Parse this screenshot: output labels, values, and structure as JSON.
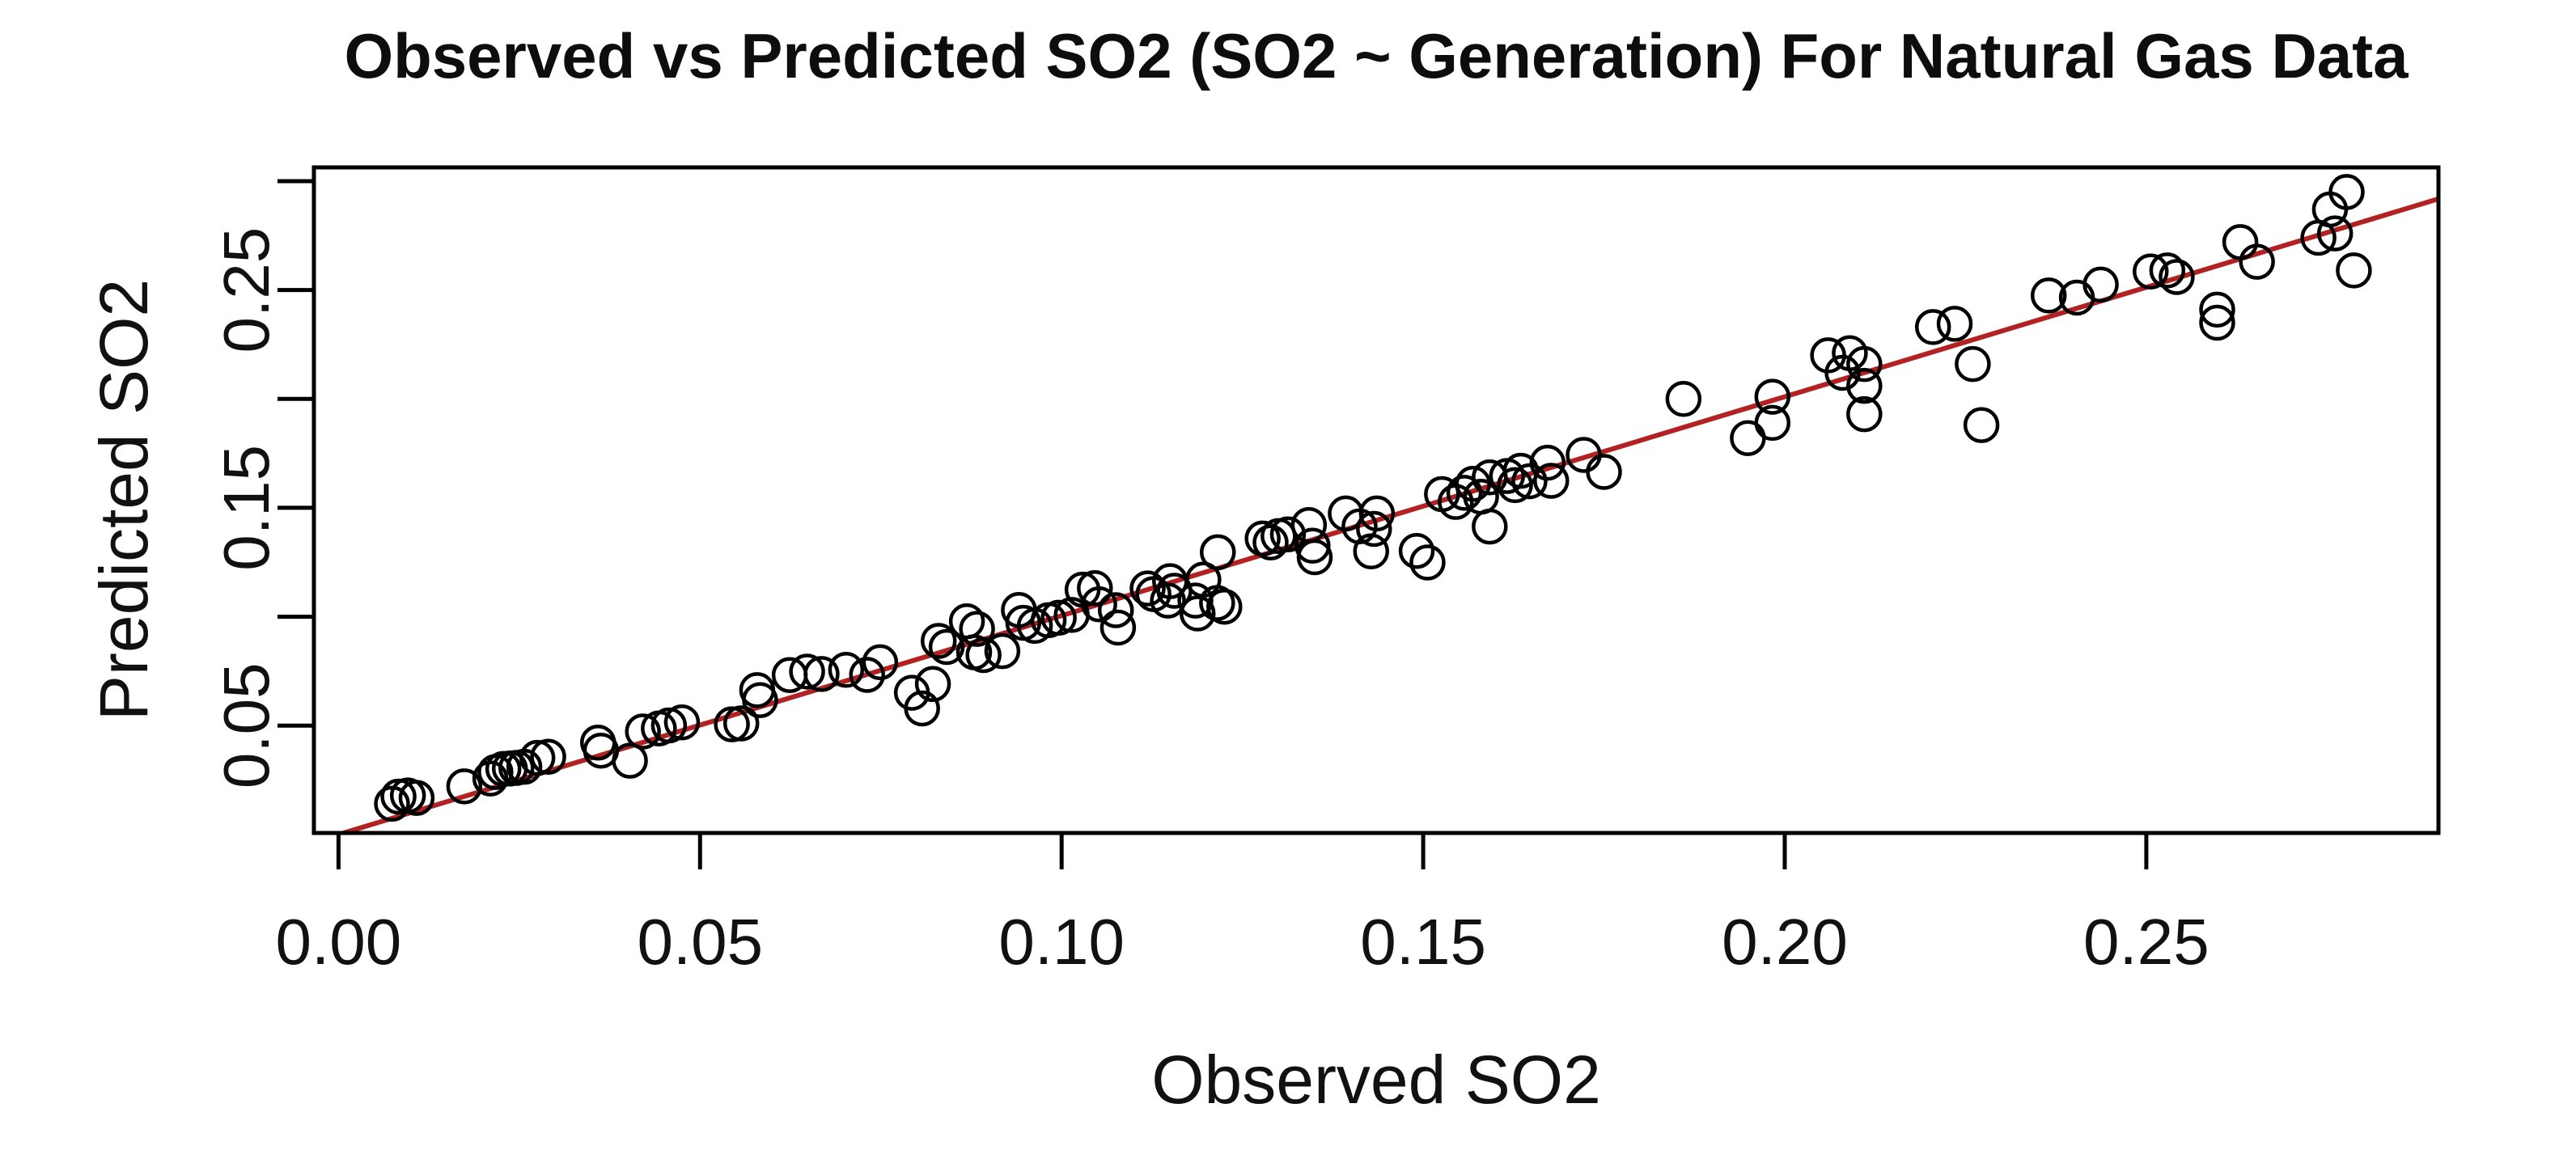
{
  "chart_data": {
    "type": "scatter",
    "title": "Observed vs Predicted SO2 (SO2 ~ Generation) For Natural Gas Data",
    "xlabel": "Observed SO2",
    "ylabel": "Predicted SO2",
    "xlim": [
      -0.0034,
      0.2904
    ],
    "ylim": [
      0.0007,
      0.3063
    ],
    "grid": false,
    "legend": null,
    "x_ticks": [
      {
        "value": 0.0,
        "label": "0.00"
      },
      {
        "value": 0.05,
        "label": "0.05"
      },
      {
        "value": 0.1,
        "label": "0.10"
      },
      {
        "value": 0.15,
        "label": "0.15"
      },
      {
        "value": 0.2,
        "label": "0.20"
      },
      {
        "value": 0.25,
        "label": "0.25"
      }
    ],
    "y_ticks": [
      {
        "value": 0.05,
        "label": "0.05"
      },
      {
        "value": 0.1,
        "label": ""
      },
      {
        "value": 0.15,
        "label": "0.15"
      },
      {
        "value": 0.2,
        "label": ""
      },
      {
        "value": 0.25,
        "label": "0.25"
      },
      {
        "value": 0.3,
        "label": ""
      }
    ],
    "reference_line": {
      "slope": 1.005,
      "intercept": 0.0,
      "color": "#b22222",
      "name": "identity-fit-line"
    },
    "point_style": {
      "shape": "open-circle",
      "stroke_color": "#000000",
      "radius_px": 20
    },
    "points": [
      [
        0.0074,
        0.0141
      ],
      [
        0.0083,
        0.0174
      ],
      [
        0.0096,
        0.0179
      ],
      [
        0.0108,
        0.0168
      ],
      [
        0.0174,
        0.0221
      ],
      [
        0.021,
        0.0257
      ],
      [
        0.0217,
        0.0287
      ],
      [
        0.0228,
        0.0301
      ],
      [
        0.0237,
        0.0303
      ],
      [
        0.0246,
        0.0306
      ],
      [
        0.0257,
        0.0311
      ],
      [
        0.0275,
        0.0352
      ],
      [
        0.029,
        0.0357
      ],
      [
        0.0359,
        0.0422
      ],
      [
        0.0363,
        0.0385
      ],
      [
        0.0403,
        0.0339
      ],
      [
        0.0421,
        0.0473
      ],
      [
        0.0443,
        0.0487
      ],
      [
        0.0457,
        0.0501
      ],
      [
        0.0475,
        0.0515
      ],
      [
        0.0544,
        0.0506
      ],
      [
        0.0557,
        0.051
      ],
      [
        0.0579,
        0.0663
      ],
      [
        0.0583,
        0.0617
      ],
      [
        0.0624,
        0.0732
      ],
      [
        0.0648,
        0.0748
      ],
      [
        0.0668,
        0.0737
      ],
      [
        0.0702,
        0.0756
      ],
      [
        0.0731,
        0.0733
      ],
      [
        0.0749,
        0.0791
      ],
      [
        0.0793,
        0.0651
      ],
      [
        0.0807,
        0.0579
      ],
      [
        0.0822,
        0.0691
      ],
      [
        0.083,
        0.0889
      ],
      [
        0.0841,
        0.0861
      ],
      [
        0.0869,
        0.0979
      ],
      [
        0.0879,
        0.0837
      ],
      [
        0.0883,
        0.0944
      ],
      [
        0.0892,
        0.0824
      ],
      [
        0.0918,
        0.0842
      ],
      [
        0.0941,
        0.1031
      ],
      [
        0.0947,
        0.0972
      ],
      [
        0.0963,
        0.0958
      ],
      [
        0.0982,
        0.0984
      ],
      [
        0.0996,
        0.0995
      ],
      [
        0.1014,
        0.1008
      ],
      [
        0.1029,
        0.1124
      ],
      [
        0.1046,
        0.1131
      ],
      [
        0.1052,
        0.1057
      ],
      [
        0.1075,
        0.103
      ],
      [
        0.1078,
        0.095
      ],
      [
        0.1119,
        0.113
      ],
      [
        0.1127,
        0.1104
      ],
      [
        0.1147,
        0.1074
      ],
      [
        0.115,
        0.1163
      ],
      [
        0.1156,
        0.1119
      ],
      [
        0.1185,
        0.1074
      ],
      [
        0.1188,
        0.1015
      ],
      [
        0.1196,
        0.117
      ],
      [
        0.1215,
        0.1063
      ],
      [
        0.1216,
        0.1296
      ],
      [
        0.1225,
        0.1046
      ],
      [
        0.1278,
        0.1359
      ],
      [
        0.1289,
        0.1341
      ],
      [
        0.13,
        0.137
      ],
      [
        0.1313,
        0.1378
      ],
      [
        0.1342,
        0.1421
      ],
      [
        0.1347,
        0.1326
      ],
      [
        0.135,
        0.1273
      ],
      [
        0.1393,
        0.1474
      ],
      [
        0.1412,
        0.1415
      ],
      [
        0.1428,
        0.13
      ],
      [
        0.1432,
        0.1403
      ],
      [
        0.1436,
        0.1474
      ],
      [
        0.1491,
        0.1302
      ],
      [
        0.1506,
        0.1249
      ],
      [
        0.1526,
        0.1563
      ],
      [
        0.1545,
        0.1527
      ],
      [
        0.1557,
        0.1569
      ],
      [
        0.1569,
        0.161
      ],
      [
        0.158,
        0.1551
      ],
      [
        0.1592,
        0.164
      ],
      [
        0.1592,
        0.1414
      ],
      [
        0.1616,
        0.1646
      ],
      [
        0.1627,
        0.1604
      ],
      [
        0.1635,
        0.167
      ],
      [
        0.1647,
        0.1622
      ],
      [
        0.1672,
        0.1707
      ],
      [
        0.1677,
        0.1624
      ],
      [
        0.1722,
        0.1743
      ],
      [
        0.175,
        0.1665
      ],
      [
        0.186,
        0.2
      ],
      [
        0.1949,
        0.182
      ],
      [
        0.1983,
        0.201
      ],
      [
        0.1983,
        0.189
      ],
      [
        0.206,
        0.22
      ],
      [
        0.208,
        0.212
      ],
      [
        0.209,
        0.221
      ],
      [
        0.211,
        0.216
      ],
      [
        0.211,
        0.206
      ],
      [
        0.211,
        0.193
      ],
      [
        0.2205,
        0.233
      ],
      [
        0.2235,
        0.2345
      ],
      [
        0.226,
        0.216
      ],
      [
        0.2272,
        0.188
      ],
      [
        0.2365,
        0.2475
      ],
      [
        0.2404,
        0.2465
      ],
      [
        0.2437,
        0.2525
      ],
      [
        0.2506,
        0.2585
      ],
      [
        0.2529,
        0.259
      ],
      [
        0.2542,
        0.256
      ],
      [
        0.2598,
        0.241
      ],
      [
        0.2598,
        0.235
      ],
      [
        0.263,
        0.272
      ],
      [
        0.2653,
        0.263
      ],
      [
        0.2738,
        0.274
      ],
      [
        0.2754,
        0.287
      ],
      [
        0.2761,
        0.276
      ],
      [
        0.2777,
        0.295
      ],
      [
        0.2787,
        0.259
      ]
    ]
  }
}
